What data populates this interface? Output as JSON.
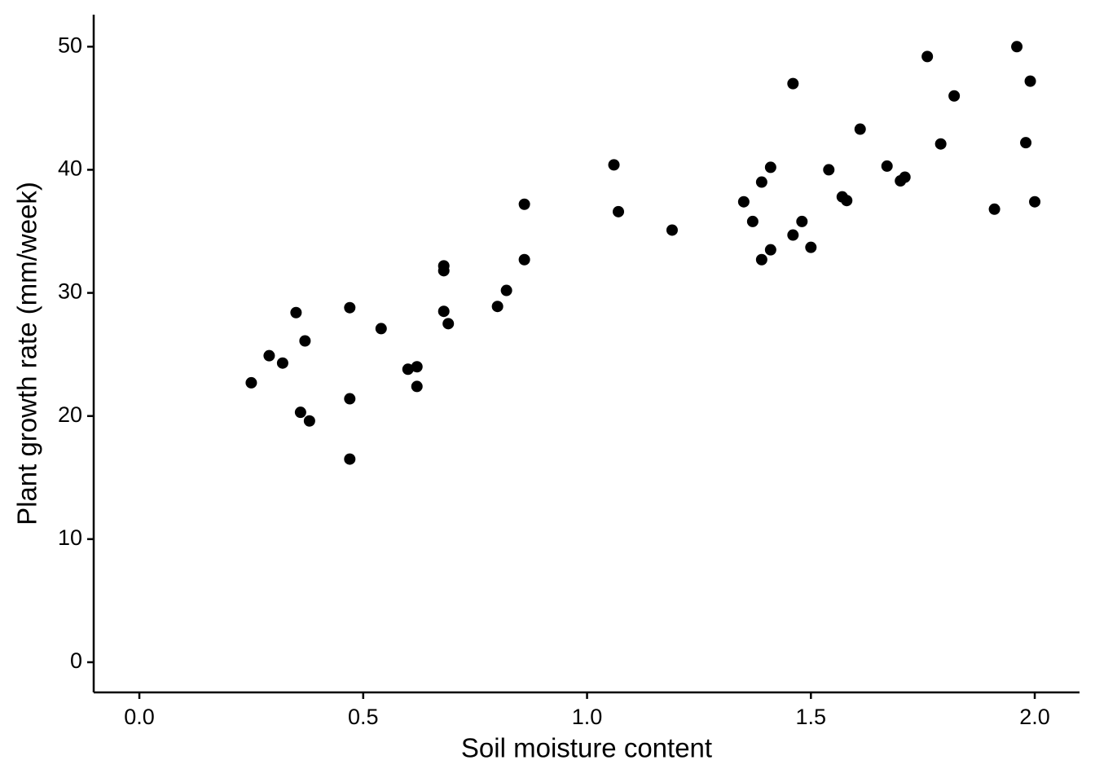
{
  "chart_data": {
    "type": "scatter",
    "x_label": "Soil moisture content",
    "y_label": "Plant growth rate (mm/week)",
    "color": "#000000",
    "x": [
      0.25,
      0.29,
      0.32,
      0.35,
      0.36,
      0.37,
      0.38,
      0.47,
      0.47,
      0.47,
      0.54,
      0.6,
      0.62,
      0.62,
      0.68,
      0.68,
      0.68,
      0.69,
      0.8,
      0.82,
      0.86,
      0.86,
      1.06,
      1.07,
      1.19,
      1.35,
      1.37,
      1.39,
      1.39,
      1.41,
      1.41,
      1.46,
      1.46,
      1.48,
      1.5,
      1.54,
      1.57,
      1.58,
      1.61,
      1.67,
      1.7,
      1.71,
      1.76,
      1.79,
      1.82,
      1.91,
      1.96,
      1.98,
      1.99,
      2.0
    ],
    "values": [
      22.7,
      24.9,
      24.3,
      28.4,
      20.3,
      26.1,
      19.6,
      16.5,
      21.4,
      28.8,
      27.1,
      23.8,
      24.0,
      22.4,
      28.5,
      31.8,
      32.2,
      27.5,
      28.9,
      30.2,
      37.2,
      32.7,
      40.4,
      36.6,
      35.1,
      37.4,
      35.8,
      32.7,
      39.0,
      40.2,
      33.5,
      47.0,
      34.7,
      35.8,
      33.7,
      40.0,
      37.8,
      37.5,
      43.3,
      40.3,
      39.1,
      39.4,
      49.2,
      42.1,
      46.0,
      36.8,
      50.0,
      42.2,
      47.2,
      37.4
    ],
    "xlim": [
      -0.102,
      2.1
    ],
    "ylim": [
      -2.45,
      52.6
    ],
    "xticks": [
      {
        "value": 0,
        "label": "0.0"
      },
      {
        "value": 0.5,
        "label": "0.5"
      },
      {
        "value": 1,
        "label": "1.0"
      },
      {
        "value": 1.5,
        "label": "1.5"
      },
      {
        "value": 2,
        "label": "2.0"
      }
    ],
    "yticks": [
      0,
      10,
      20,
      30,
      40,
      50
    ],
    "grid": false
  }
}
